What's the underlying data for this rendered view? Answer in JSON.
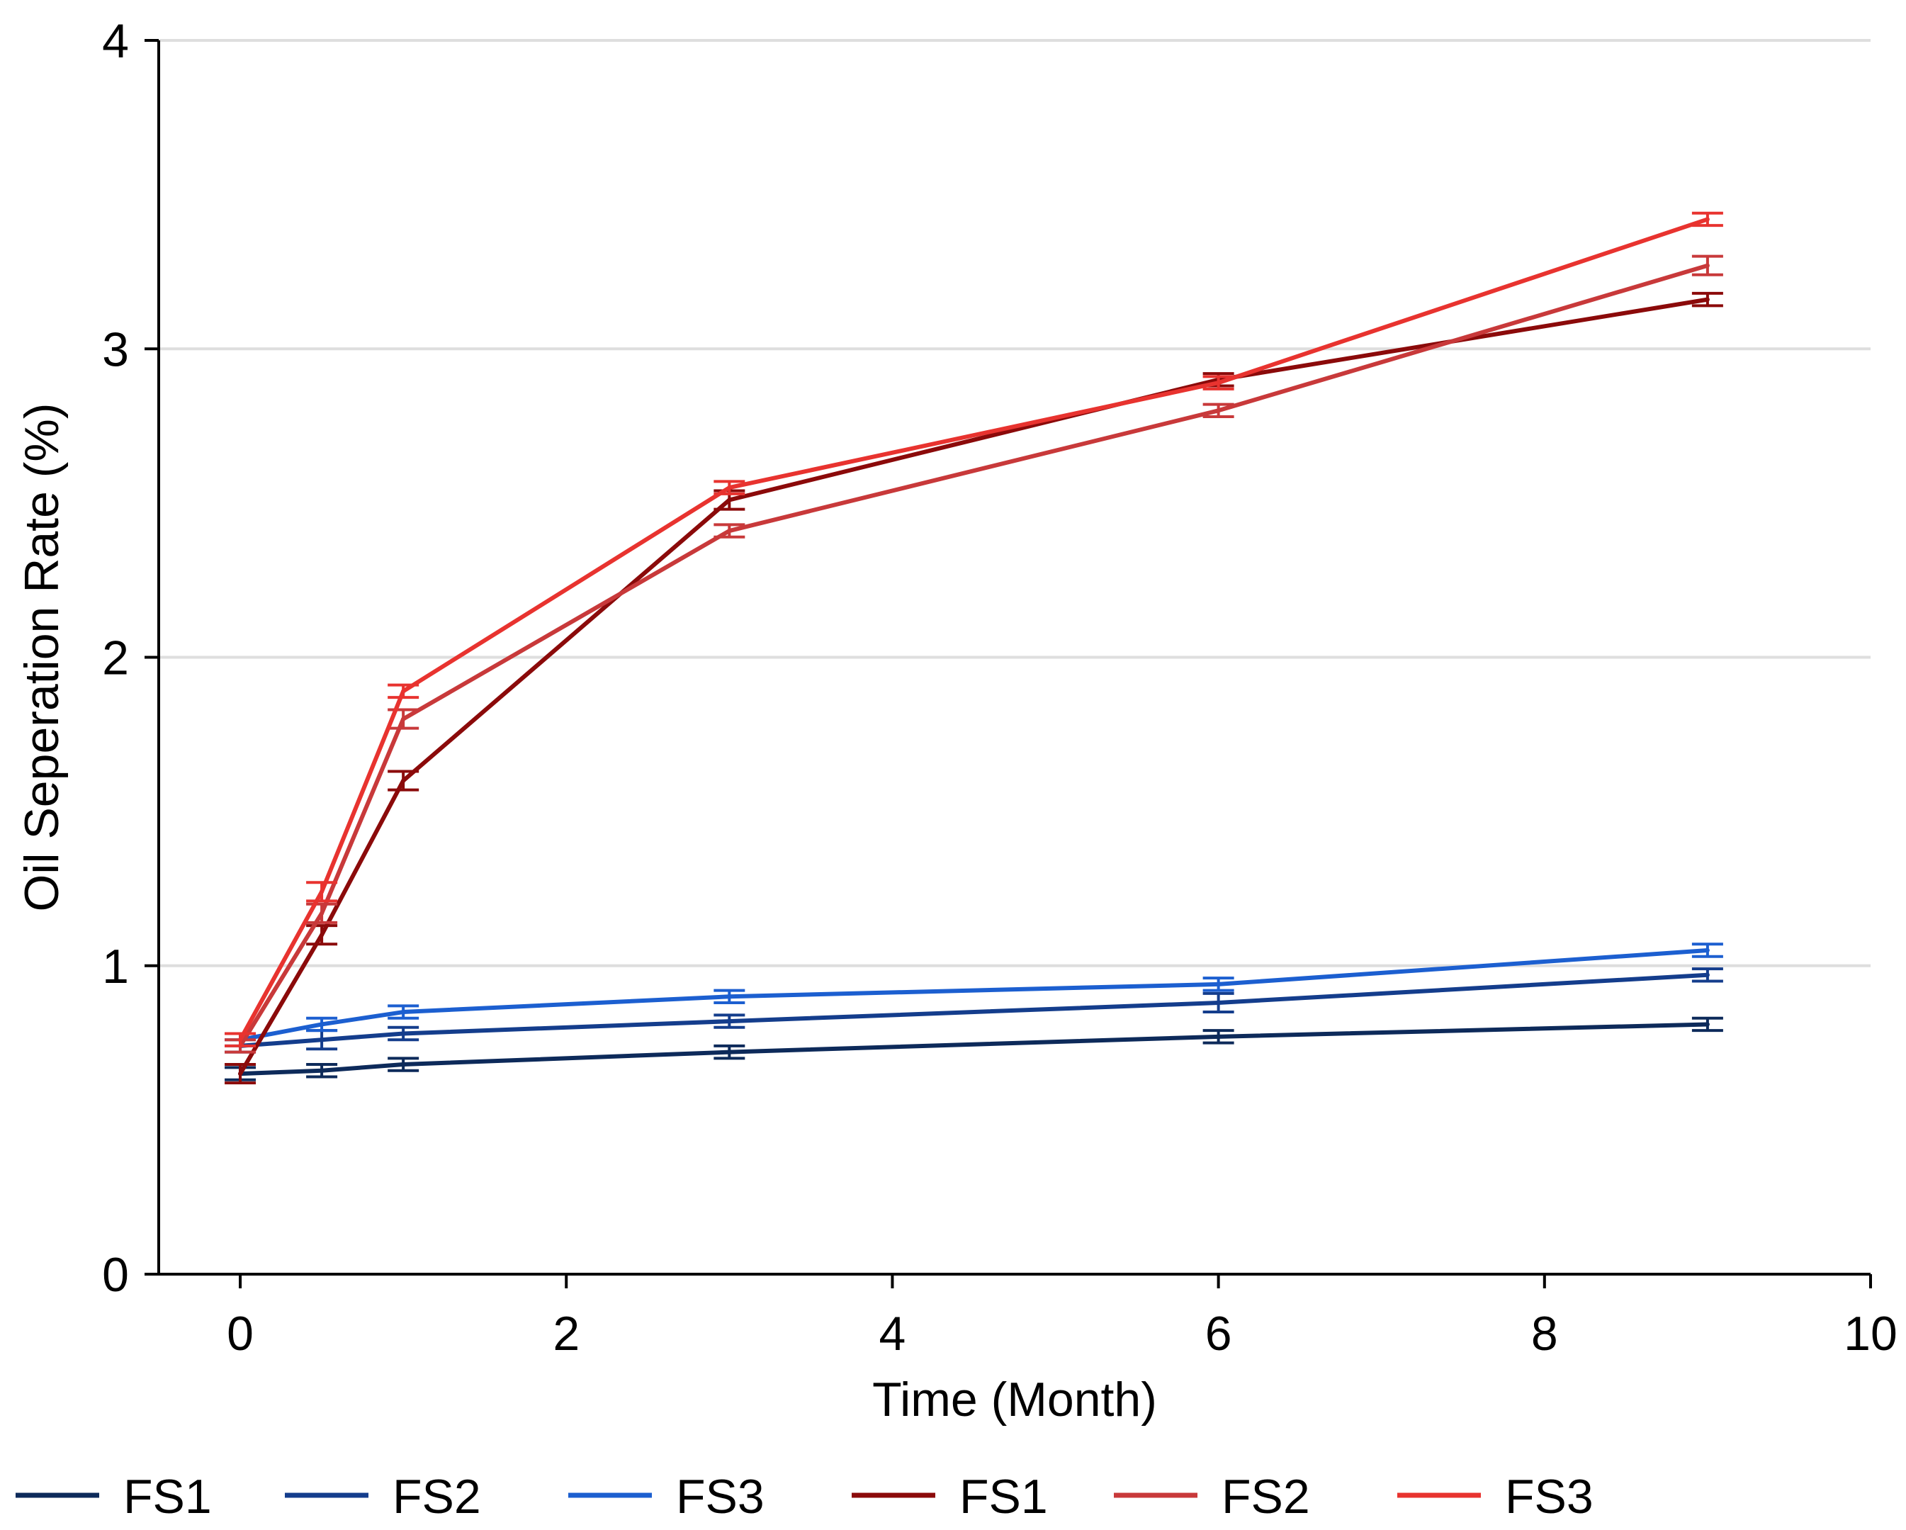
{
  "chart_data": {
    "type": "line",
    "xlabel": "Time (Month)",
    "ylabel": "Oil Seperation Rate (%)",
    "xlim": [
      -0.5,
      10
    ],
    "ylim": [
      0,
      4
    ],
    "xticks": [
      0,
      2,
      4,
      6,
      8,
      10
    ],
    "yticks": [
      0,
      1,
      2,
      3,
      4
    ],
    "grid": "horizontal",
    "legend_position": "bottom",
    "x": [
      0,
      0.5,
      1,
      3,
      6,
      9
    ],
    "series": [
      {
        "name": "FS1",
        "color": "#0d2a5a",
        "values": [
          0.65,
          0.66,
          0.68,
          0.72,
          0.77,
          0.81
        ],
        "errors": [
          0.02,
          0.02,
          0.02,
          0.02,
          0.02,
          0.02
        ]
      },
      {
        "name": "FS2",
        "color": "#143d8c",
        "values": [
          0.74,
          0.76,
          0.78,
          0.82,
          0.88,
          0.97
        ],
        "errors": [
          0.02,
          0.03,
          0.02,
          0.02,
          0.03,
          0.02
        ]
      },
      {
        "name": "FS3",
        "color": "#1c5fd0",
        "values": [
          0.76,
          0.81,
          0.85,
          0.9,
          0.94,
          1.05
        ],
        "errors": [
          0.02,
          0.02,
          0.02,
          0.02,
          0.02,
          0.02
        ]
      },
      {
        "name": "FS1",
        "color": "#8b0a0a",
        "values": [
          0.65,
          1.1,
          1.6,
          2.51,
          2.9,
          3.16
        ],
        "errors": [
          0.03,
          0.03,
          0.03,
          0.03,
          0.02,
          0.02
        ]
      },
      {
        "name": "FS2",
        "color": "#c8393a",
        "values": [
          0.74,
          1.17,
          1.8,
          2.41,
          2.8,
          3.27
        ],
        "errors": [
          0.02,
          0.03,
          0.03,
          0.02,
          0.02,
          0.03
        ]
      },
      {
        "name": "FS3",
        "color": "#e8332f",
        "values": [
          0.76,
          1.24,
          1.89,
          2.55,
          2.89,
          3.42
        ],
        "errors": [
          0.02,
          0.03,
          0.02,
          0.02,
          0.02,
          0.02
        ]
      }
    ]
  }
}
